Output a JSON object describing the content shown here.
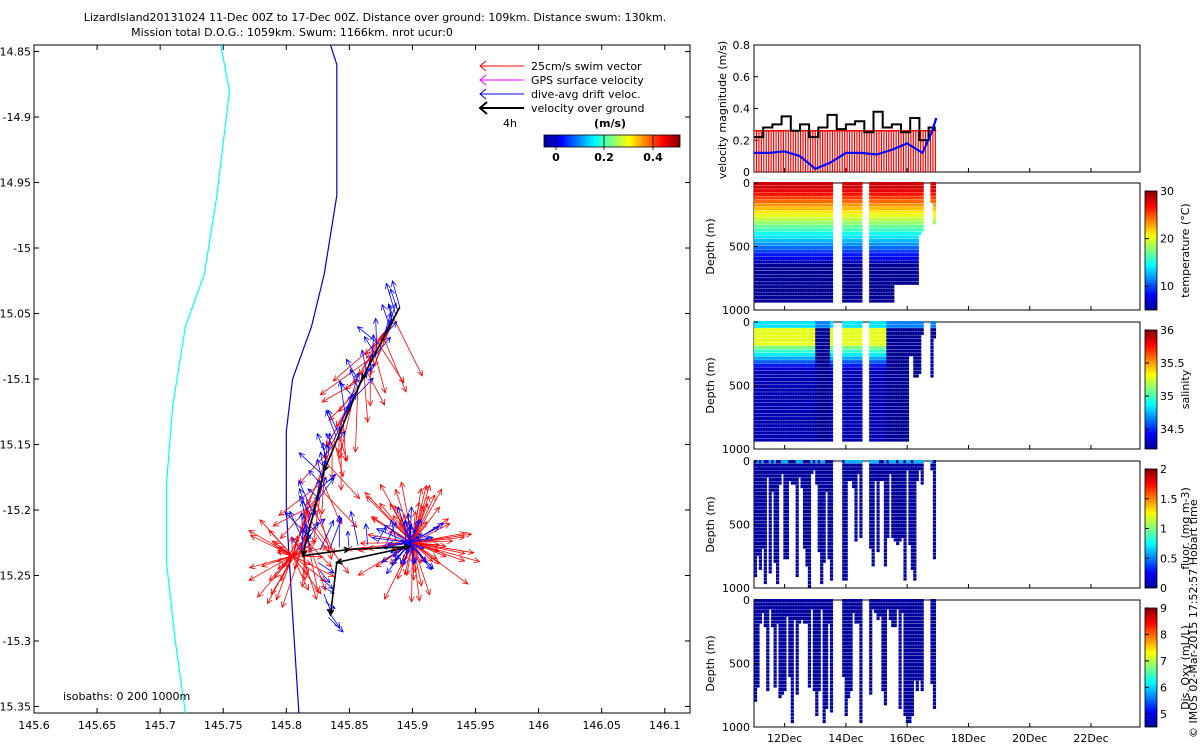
{
  "title_line1": "LizardIsland20131024 11-Dec 00Z to 17-Dec 00Z. Distance over ground: 109km. Distance swum: 130km.",
  "title_line2": "Mission total D.O.G.: 1059km. Swum: 1166km. nrot ucur:0",
  "watermark": "© IMOS 02-Mar-2015 17:52:57 Hobart time",
  "map": {
    "xlim": [
      145.6,
      146.12
    ],
    "ylim": [
      -15.355,
      -14.845
    ],
    "xticks": [
      "145.6",
      "145.65",
      "145.7",
      "145.75",
      "145.8",
      "145.85",
      "145.9",
      "145.95",
      "146",
      "146.05",
      "146.1"
    ],
    "xtick_values": [
      145.6,
      145.65,
      145.7,
      145.75,
      145.8,
      145.85,
      145.9,
      145.95,
      146.0,
      146.05,
      146.1
    ],
    "yticks": [
      "-14.85",
      "-14.9",
      "-14.95",
      "-15",
      "-15.05",
      "-15.1",
      "-15.15",
      "-15.2",
      "-15.25",
      "-15.3",
      "-15.35"
    ],
    "ytick_values": [
      -14.85,
      -14.9,
      -14.95,
      -15.0,
      -15.05,
      -15.1,
      -15.15,
      -15.2,
      -15.25,
      -15.3,
      -15.35
    ],
    "isobath_label": "isobaths: 0   200  1000m",
    "legend": [
      {
        "label": "25cm/s swim vector",
        "color": "#ff0000"
      },
      {
        "label": "GPS surface velocity",
        "color": "#ff00ff"
      },
      {
        "label": "dive-avg drift veloc.",
        "color": "#0000ff"
      },
      {
        "label": "velocity over ground",
        "color": "#000000"
      }
    ],
    "scale_label": "4h",
    "colorbar_title": "(m/s)",
    "colorbar_ticks": [
      "0",
      "0.2",
      "0.4"
    ],
    "isobath_200": [
      [
        145.748,
        -14.845
      ],
      [
        145.755,
        -14.88
      ],
      [
        145.745,
        -14.96
      ],
      [
        145.735,
        -15.02
      ],
      [
        145.72,
        -15.06
      ],
      [
        145.71,
        -15.12
      ],
      [
        145.705,
        -15.18
      ],
      [
        145.705,
        -15.24
      ],
      [
        145.712,
        -15.3
      ],
      [
        145.72,
        -15.355
      ]
    ],
    "isobath_1000": [
      [
        145.835,
        -14.845
      ],
      [
        145.84,
        -14.86
      ],
      [
        145.84,
        -14.96
      ],
      [
        145.83,
        -15.02
      ],
      [
        145.82,
        -15.06
      ],
      [
        145.805,
        -15.1
      ],
      [
        145.8,
        -15.14
      ],
      [
        145.8,
        -15.2
      ],
      [
        145.805,
        -15.28
      ],
      [
        145.81,
        -15.355
      ]
    ]
  },
  "chart_data": [
    {
      "type": "line",
      "panel": "velocity",
      "ylabel": "velocity magnitude (m/s)",
      "ylim": [
        0,
        0.8
      ],
      "yticks": [
        "0",
        "0.2",
        "0.4",
        "0.6",
        "0.8"
      ],
      "series": [
        {
          "color": "#000000",
          "x": [
            11.0,
            11.3,
            11.6,
            11.9,
            12.2,
            12.5,
            12.8,
            13.1,
            13.4,
            13.7,
            14.0,
            14.3,
            14.6,
            14.9,
            15.2,
            15.5,
            15.8,
            16.1,
            16.4,
            16.7,
            16.9
          ],
          "y": [
            0.22,
            0.28,
            0.3,
            0.35,
            0.26,
            0.3,
            0.22,
            0.28,
            0.36,
            0.27,
            0.3,
            0.32,
            0.25,
            0.38,
            0.28,
            0.3,
            0.25,
            0.34,
            0.2,
            0.28,
            0.26
          ]
        },
        {
          "color": "#0000ff",
          "x": [
            11.0,
            11.5,
            12.0,
            12.5,
            13.0,
            13.5,
            14.0,
            14.5,
            15.0,
            15.5,
            16.0,
            16.5,
            16.8,
            16.95
          ],
          "y": [
            0.12,
            0.12,
            0.13,
            0.1,
            0.02,
            0.06,
            0.12,
            0.12,
            0.11,
            0.14,
            0.18,
            0.12,
            0.25,
            0.34
          ]
        },
        {
          "color": "#ff0000",
          "x": [
            11.0,
            16.95
          ],
          "y": [
            0.26,
            0.26
          ]
        }
      ]
    },
    {
      "type": "scatter",
      "panel": "temperature",
      "ylabel": "Depth (m)",
      "cbar_label": "temperature (°C)",
      "clim": [
        5,
        30
      ],
      "cbar_ticks": [
        "10",
        "20",
        "30"
      ],
      "yticks": [
        "0",
        "500",
        "1000"
      ]
    },
    {
      "type": "scatter",
      "panel": "salinity",
      "ylabel": "Depth (m)",
      "cbar_label": "salinity",
      "clim": [
        34.2,
        36
      ],
      "cbar_ticks": [
        "34.5",
        "35",
        "35.5",
        "36"
      ],
      "yticks": [
        "0",
        "500",
        "1000"
      ]
    },
    {
      "type": "scatter",
      "panel": "fluorescence",
      "ylabel": "Depth (m)",
      "cbar_label": "fluor. (mg m-3)",
      "clim": [
        0,
        2
      ],
      "cbar_ticks": [
        "0",
        "0.5",
        "1",
        "1.5",
        "2"
      ],
      "yticks": [
        "0",
        "500",
        "1000"
      ]
    },
    {
      "type": "scatter",
      "panel": "oxygen",
      "ylabel": "Depth (m)",
      "cbar_label": "Dis. Oxy (mL/L)",
      "clim": [
        4.5,
        9
      ],
      "cbar_ticks": [
        "5",
        "6",
        "7",
        "8",
        "9"
      ],
      "yticks": [
        "0",
        "500",
        "1000"
      ]
    }
  ],
  "time_axis": {
    "xlim": [
      11.0,
      23.6
    ],
    "ticks": [
      "12Dec",
      "14Dec",
      "16Dec",
      "18Dec",
      "20Dec",
      "22Dec"
    ],
    "tick_values": [
      12,
      14,
      16,
      18,
      20,
      22
    ]
  }
}
